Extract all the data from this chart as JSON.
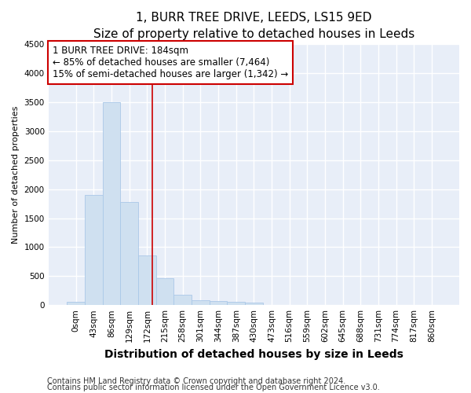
{
  "title": "1, BURR TREE DRIVE, LEEDS, LS15 9ED",
  "subtitle": "Size of property relative to detached houses in Leeds",
  "xlabel": "Distribution of detached houses by size in Leeds",
  "ylabel": "Number of detached properties",
  "categories": [
    "0sqm",
    "43sqm",
    "86sqm",
    "129sqm",
    "172sqm",
    "215sqm",
    "258sqm",
    "301sqm",
    "344sqm",
    "387sqm",
    "430sqm",
    "473sqm",
    "516sqm",
    "559sqm",
    "602sqm",
    "645sqm",
    "688sqm",
    "731sqm",
    "774sqm",
    "817sqm",
    "860sqm"
  ],
  "values": [
    50,
    1900,
    3500,
    1780,
    850,
    460,
    175,
    90,
    65,
    50,
    40,
    5,
    2,
    1,
    1,
    0,
    0,
    0,
    0,
    0,
    0
  ],
  "bar_color": "#cfe0f0",
  "bar_edge_color": "#aac8e8",
  "vline_x": 4.28,
  "vline_color": "#cc0000",
  "annotation_line1": "1 BURR TREE DRIVE: 184sqm",
  "annotation_line2": "← 85% of detached houses are smaller (7,464)",
  "annotation_line3": "15% of semi-detached houses are larger (1,342) →",
  "annotation_box_color": "#cc0000",
  "ylim": [
    0,
    4500
  ],
  "yticks": [
    0,
    500,
    1000,
    1500,
    2000,
    2500,
    3000,
    3500,
    4000,
    4500
  ],
  "footer1": "Contains HM Land Registry data © Crown copyright and database right 2024.",
  "footer2": "Contains public sector information licensed under the Open Government Licence v3.0.",
  "bg_color": "#ffffff",
  "plot_bg_color": "#e8eef8",
  "grid_color": "#ffffff",
  "title_fontsize": 11,
  "subtitle_fontsize": 9,
  "xlabel_fontsize": 10,
  "ylabel_fontsize": 8,
  "tick_fontsize": 7.5,
  "footer_fontsize": 7,
  "annot_fontsize": 8.5
}
